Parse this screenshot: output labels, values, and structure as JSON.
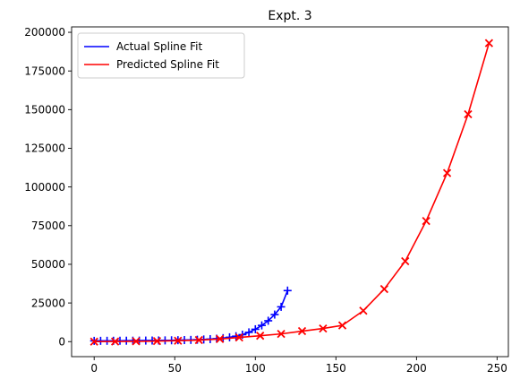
{
  "chart_data": {
    "type": "line",
    "title": "Expt. 3",
    "xlabel": "",
    "ylabel": "",
    "xlim": [
      -14,
      257
    ],
    "ylim": [
      -9700,
      203500
    ],
    "xticks": [
      0,
      50,
      100,
      150,
      200,
      250
    ],
    "yticks": [
      0,
      25000,
      50000,
      75000,
      100000,
      125000,
      150000,
      175000,
      200000
    ],
    "grid": false,
    "legend_position": "top-left",
    "series": [
      {
        "name": "Actual Spline Fit",
        "color": "#0000ff",
        "marker": "+",
        "x": [
          0,
          4,
          8,
          12,
          16,
          20,
          24,
          28,
          32,
          36,
          40,
          44,
          48,
          52,
          56,
          60,
          64,
          68,
          72,
          76,
          80,
          84,
          88,
          92,
          96,
          100,
          104,
          108,
          112,
          116,
          120
        ],
        "y": [
          500,
          520,
          540,
          560,
          580,
          600,
          620,
          650,
          680,
          710,
          750,
          800,
          860,
          930,
          1010,
          1110,
          1240,
          1400,
          1620,
          1900,
          2280,
          2800,
          3500,
          4500,
          6000,
          8000,
          10500,
          13500,
          17500,
          22500,
          33000
        ]
      },
      {
        "name": "Predicted Spline Fit",
        "color": "#ff0000",
        "marker": "x",
        "x": [
          0,
          13,
          26,
          39,
          52,
          65,
          78,
          90,
          103,
          116,
          129,
          142,
          154,
          167,
          180,
          193,
          206,
          219,
          232,
          245
        ],
        "y": [
          0,
          100,
          200,
          350,
          600,
          1000,
          1700,
          2700,
          3800,
          5000,
          6800,
          8500,
          10500,
          20000,
          34000,
          52000,
          78000,
          109000,
          147000,
          193000
        ]
      }
    ]
  }
}
